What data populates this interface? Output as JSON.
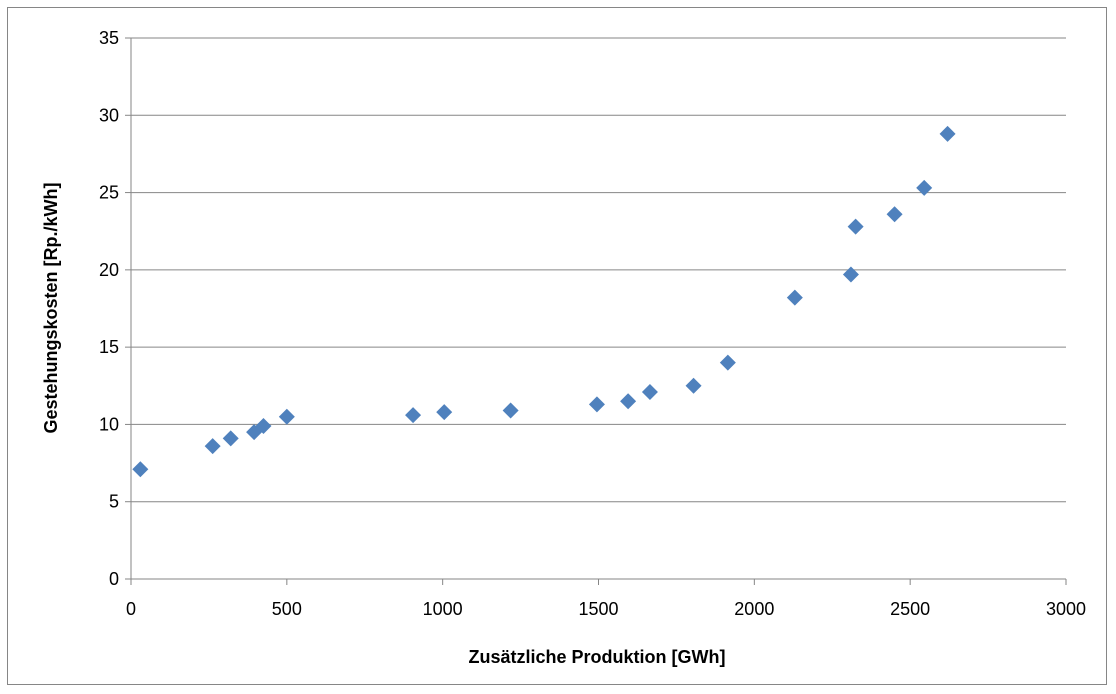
{
  "chart_data": {
    "type": "scatter",
    "title": "",
    "xlabel": "Zusätzliche Produktion [GWh]",
    "ylabel": "Gestehungskosten [Rp./kWh]",
    "xlim": [
      0,
      3000
    ],
    "ylim": [
      0,
      35
    ],
    "xticks": [
      "0",
      "500",
      "1000",
      "1500",
      "2000",
      "2500",
      "3000"
    ],
    "yticks": [
      "0",
      "5",
      "10",
      "15",
      "20",
      "25",
      "30",
      "35"
    ],
    "grid": "horizontal",
    "legend": "none",
    "marker": "diamond",
    "colors": {
      "marker": "#4F81BD",
      "grid": "#868686",
      "axis": "#868686"
    },
    "points": [
      {
        "x": 30,
        "y": 7.1
      },
      {
        "x": 262,
        "y": 8.6
      },
      {
        "x": 320,
        "y": 9.1
      },
      {
        "x": 395,
        "y": 9.5
      },
      {
        "x": 425,
        "y": 9.9
      },
      {
        "x": 500,
        "y": 10.5
      },
      {
        "x": 905,
        "y": 10.6
      },
      {
        "x": 1005,
        "y": 10.8
      },
      {
        "x": 1218,
        "y": 10.9
      },
      {
        "x": 1495,
        "y": 11.3
      },
      {
        "x": 1595,
        "y": 11.5
      },
      {
        "x": 1665,
        "y": 12.1
      },
      {
        "x": 1805,
        "y": 12.5
      },
      {
        "x": 1915,
        "y": 14.0
      },
      {
        "x": 2130,
        "y": 18.2
      },
      {
        "x": 2310,
        "y": 19.7
      },
      {
        "x": 2325,
        "y": 22.8
      },
      {
        "x": 2450,
        "y": 23.6
      },
      {
        "x": 2545,
        "y": 25.3
      },
      {
        "x": 2620,
        "y": 28.8
      }
    ]
  }
}
